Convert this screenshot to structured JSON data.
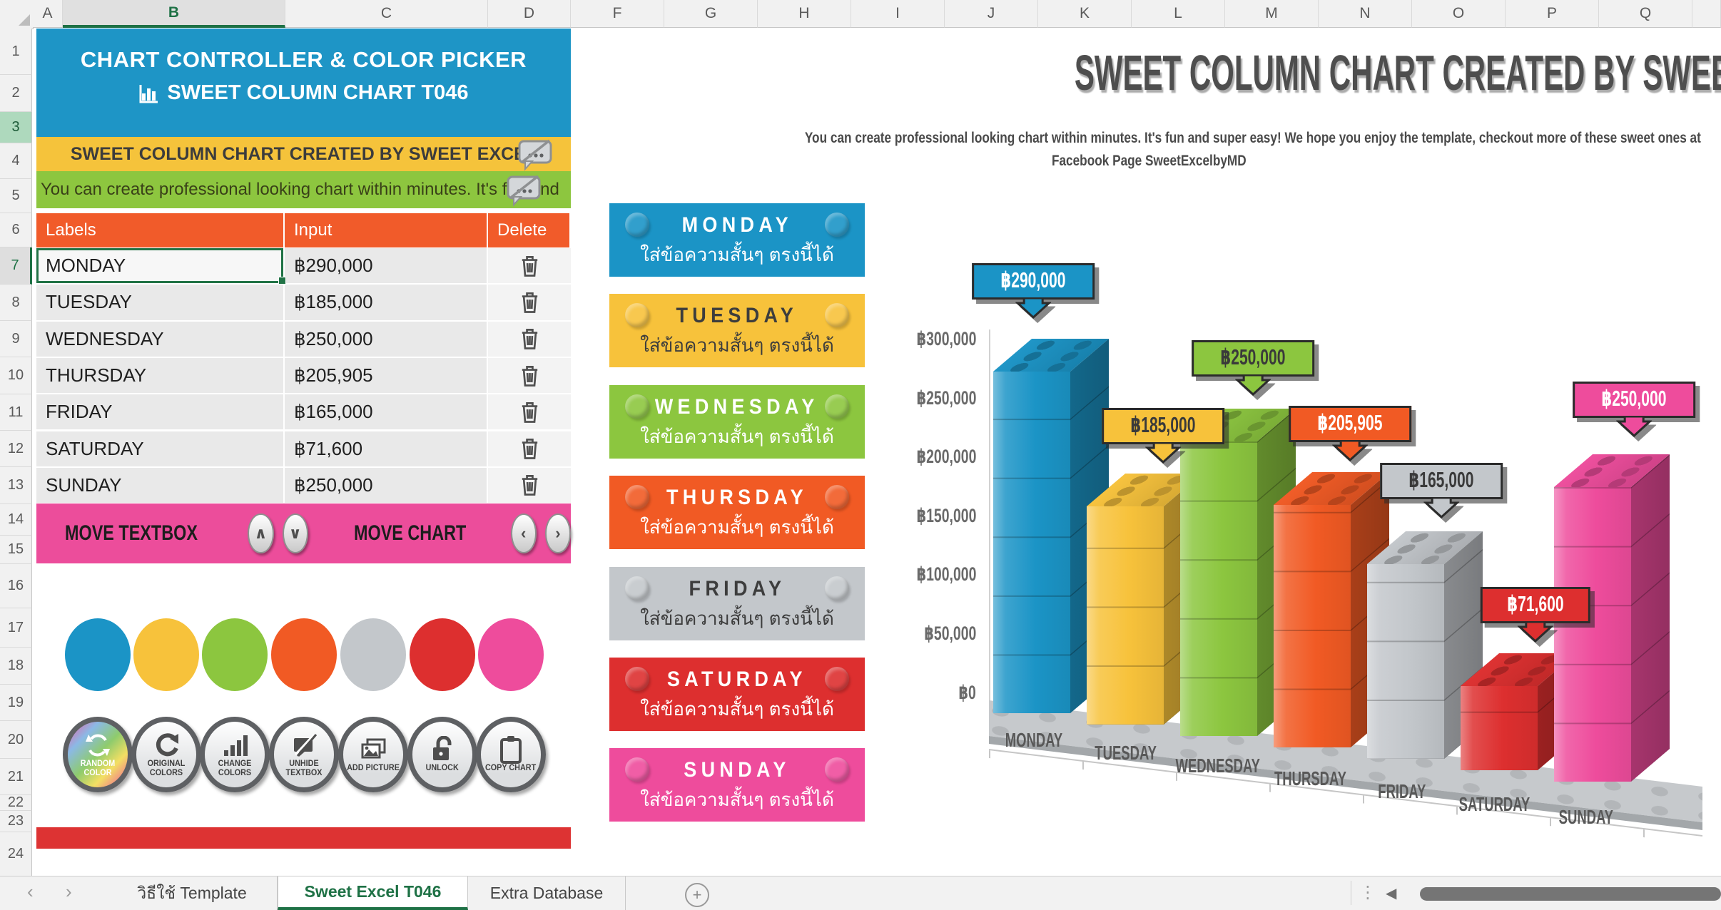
{
  "excel": {
    "columns": [
      "A",
      "B",
      "C",
      "D",
      "F",
      "G",
      "H",
      "I",
      "J",
      "K",
      "L",
      "M",
      "N",
      "O",
      "P",
      "Q"
    ],
    "selected_column": "B",
    "row_count": 24,
    "green_row": 3,
    "active_row": 7,
    "tabs": {
      "nav_prev": "‹",
      "nav_next": "›",
      "items": [
        {
          "label": "วิธีใช้ Template",
          "active": false
        },
        {
          "label": "Sweet Excel T046",
          "active": true
        },
        {
          "label": "Extra Database",
          "active": false
        }
      ],
      "add_sheet": "+"
    },
    "bottom": {
      "drag_dots": "⋮",
      "scroll_left_arrow": "◀"
    }
  },
  "controller": {
    "header": {
      "line1": "CHART CONTROLLER & COLOR PICKER",
      "line2": "SWEET COLUMN CHART T046"
    },
    "chart_title_bar": {
      "text": "SWEET COLUMN CHART CREATED BY SWEET EXCEL"
    },
    "chart_desc_bar": {
      "text": "You can create professional looking chart within minutes. It's fun and"
    },
    "table": {
      "headers": [
        "Labels",
        "Input",
        "Delete"
      ],
      "rows": [
        {
          "label": "MONDAY",
          "input": "฿290,000"
        },
        {
          "label": "TUESDAY",
          "input": "฿185,000"
        },
        {
          "label": "WEDNESDAY",
          "input": "฿250,000"
        },
        {
          "label": "THURSDAY",
          "input": "฿205,905"
        },
        {
          "label": "FRIDAY",
          "input": "฿165,000"
        },
        {
          "label": "SATURDAY",
          "input": "฿71,600"
        },
        {
          "label": "SUNDAY",
          "input": "฿250,000"
        }
      ]
    },
    "move_bar": {
      "textbox_label": "MOVE TEXTBOX",
      "chart_label": "MOVE CHART",
      "up": "∧",
      "down": "∨",
      "left": "‹",
      "right": "›"
    },
    "palette": [
      "#1B94C6",
      "#F7C23B",
      "#8CC63F",
      "#F15A24",
      "#C3C7CB",
      "#DD2F2F",
      "#EE4C9C"
    ],
    "tools": [
      {
        "label": "RANDOM COLOR",
        "icon": "random-color"
      },
      {
        "label": "ORIGINAL COLORS",
        "icon": "original-colors"
      },
      {
        "label": "CHANGE COLORS",
        "icon": "change-colors"
      },
      {
        "label": "UNHIDE TEXTBOX",
        "icon": "unhide-textbox"
      },
      {
        "label": "ADD PICTURE",
        "icon": "add-picture"
      },
      {
        "label": "UNLOCK",
        "icon": "unlock"
      },
      {
        "label": "COPY CHART",
        "icon": "copy-chart"
      }
    ]
  },
  "banners": {
    "subtitle": "ใส่ข้อความสั้นๆ ตรงนี้ได้",
    "items": [
      {
        "day": "MONDAY",
        "color": "#1B94C6",
        "text": "#ffffff"
      },
      {
        "day": "TUESDAY",
        "color": "#F7C23B",
        "text": "#3d3d3d"
      },
      {
        "day": "WEDNESDAY",
        "color": "#8CC63F",
        "text": "#ffffff"
      },
      {
        "day": "THURSDAY",
        "color": "#F15A24",
        "text": "#ffffff"
      },
      {
        "day": "FRIDAY",
        "color": "#C3C7CB",
        "text": "#3d3d3d"
      },
      {
        "day": "SATURDAY",
        "color": "#DD2F2F",
        "text": "#ffffff"
      },
      {
        "day": "SUNDAY",
        "color": "#EE4C9C",
        "text": "#ffffff"
      }
    ]
  },
  "chart_data": {
    "type": "bar",
    "style": "3d-lego-columns",
    "title": "SWEET COLUMN CHART CREATED BY SWEET EXCEL",
    "subtitle_lines": [
      "You can create professional looking chart within minutes. It's fun and super easy! We hope you enjoy the template, checkout more of these sweet ones at",
      "Facebook Page SweetExcelbyMD"
    ],
    "categories": [
      "MONDAY",
      "TUESDAY",
      "WEDNESDAY",
      "THURSDAY",
      "FRIDAY",
      "SATURDAY",
      "SUNDAY"
    ],
    "values": [
      290000,
      185000,
      250000,
      205905,
      165000,
      71600,
      250000
    ],
    "value_labels": [
      "฿290,000",
      "฿185,000",
      "฿250,000",
      "฿205,905",
      "฿165,000",
      "฿71,600",
      "฿250,000"
    ],
    "label_text_colors": [
      "#ffffff",
      "#3a3a3a",
      "#3a3a3a",
      "#ffffff",
      "#3a3a3a",
      "#ffffff",
      "#ffffff"
    ],
    "colors": [
      "#1B94C6",
      "#F7C23B",
      "#8CC63F",
      "#F15A24",
      "#C3C7CB",
      "#DD2F2F",
      "#EE4C9C"
    ],
    "y_ticks": [
      "฿300,000",
      "฿250,000",
      "฿200,000",
      "฿150,000",
      "฿100,000",
      "฿50,000",
      "฿0"
    ],
    "ylim": [
      0,
      300000
    ],
    "grid": false,
    "legend": false
  }
}
